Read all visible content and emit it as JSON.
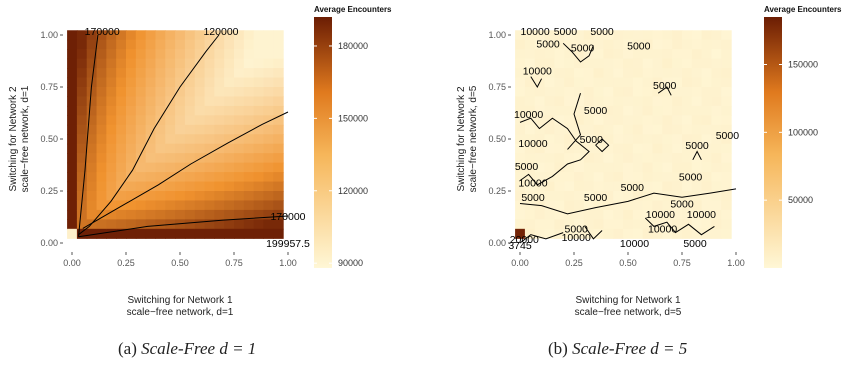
{
  "chart_data": [
    {
      "type": "heatmap",
      "panel": "a",
      "xlabel": "Switching for Network 1\nscale−free network, d=1",
      "ylabel": "Switching for Network 2\nscale−free network, d=1",
      "x_ticks": [
        "0.00",
        "0.25",
        "0.50",
        "0.75",
        "1.00"
      ],
      "y_ticks": [
        "0.00",
        "0.25",
        "0.50",
        "0.75",
        "1.00"
      ],
      "xlim": [
        0,
        1
      ],
      "ylim": [
        0,
        1
      ],
      "legend": {
        "title": "Average Encounters",
        "placement": "right",
        "ticks": [
          "90000",
          "120000",
          "150000",
          "180000"
        ],
        "tick_values": [
          90000,
          120000,
          150000,
          180000
        ],
        "range": [
          88000,
          192000
        ],
        "color_low": "#fff7d6",
        "color_mid": "#f0922e",
        "color_high": "#6b1d04"
      },
      "contour_labels": [
        {
          "text": "170000",
          "x": 0.14,
          "y": 1.02
        },
        {
          "text": "120000",
          "x": 0.69,
          "y": 1.02
        },
        {
          "text": "170000",
          "x": 1.0,
          "y": 0.13
        },
        {
          "text": "199957.5",
          "x": 1.0,
          "y": 0.0
        }
      ]
    },
    {
      "type": "heatmap",
      "panel": "b",
      "xlabel": "Switching for Network 1\nscale−free network, d=5",
      "ylabel": "Switching for Network 2\nscale−free network, d=5",
      "x_ticks": [
        "0.00",
        "0.25",
        "0.50",
        "0.75",
        "1.00"
      ],
      "y_ticks": [
        "0.00",
        "0.25",
        "0.50",
        "0.75",
        "1.00"
      ],
      "xlim": [
        0,
        1
      ],
      "ylim": [
        0,
        1
      ],
      "legend": {
        "title": "Average Encounters",
        "placement": "right",
        "ticks": [
          "50000",
          "100000",
          "150000"
        ],
        "tick_values": [
          50000,
          100000,
          150000
        ],
        "range": [
          0,
          185000
        ],
        "color_low": "#fff7d6",
        "color_mid": "#f0922e",
        "color_high": "#6b1d04"
      },
      "contour_labels": [
        {
          "text": "10000",
          "x": 0.07,
          "y": 1.02
        },
        {
          "text": "5000",
          "x": 0.21,
          "y": 1.02
        },
        {
          "text": "5000",
          "x": 0.38,
          "y": 1.02
        },
        {
          "text": "5000",
          "x": 0.13,
          "y": 0.96
        },
        {
          "text": "5000",
          "x": 0.29,
          "y": 0.94
        },
        {
          "text": "5000",
          "x": 0.55,
          "y": 0.95
        },
        {
          "text": "10000",
          "x": 0.08,
          "y": 0.83
        },
        {
          "text": "5000",
          "x": 0.67,
          "y": 0.76
        },
        {
          "text": "10000",
          "x": 0.04,
          "y": 0.62
        },
        {
          "text": "5000",
          "x": 0.35,
          "y": 0.64
        },
        {
          "text": "5000",
          "x": 0.96,
          "y": 0.52
        },
        {
          "text": "5000",
          "x": 0.33,
          "y": 0.5
        },
        {
          "text": "10000",
          "x": 0.06,
          "y": 0.48
        },
        {
          "text": "5000",
          "x": 0.82,
          "y": 0.47
        },
        {
          "text": "5000",
          "x": 0.03,
          "y": 0.37
        },
        {
          "text": "5000",
          "x": 0.79,
          "y": 0.32
        },
        {
          "text": "10000",
          "x": 0.06,
          "y": 0.29
        },
        {
          "text": "5000",
          "x": 0.52,
          "y": 0.27
        },
        {
          "text": "5000",
          "x": 0.06,
          "y": 0.22
        },
        {
          "text": "5000",
          "x": 0.35,
          "y": 0.22
        },
        {
          "text": "5000",
          "x": 0.75,
          "y": 0.19
        },
        {
          "text": "10000",
          "x": 0.65,
          "y": 0.14
        },
        {
          "text": "10000",
          "x": 0.84,
          "y": 0.14
        },
        {
          "text": "10000",
          "x": 0.66,
          "y": 0.07
        },
        {
          "text": "20000",
          "x": 0.02,
          "y": 0.02
        },
        {
          "text": "5000",
          "x": 0.26,
          "y": 0.07
        },
        {
          "text": "10000",
          "x": 0.26,
          "y": 0.03
        },
        {
          "text": "10000",
          "x": 0.53,
          "y": 0.0
        },
        {
          "text": "5000",
          "x": 0.81,
          "y": 0.0
        },
        {
          "text": "3745",
          "x": 0.0,
          "y": -0.01
        }
      ]
    }
  ],
  "captions": [
    {
      "label": "(a)",
      "title": "Scale-Free",
      "formula": "d = 1"
    },
    {
      "label": "(b)",
      "title": "Scale-Free",
      "formula": "d = 5"
    }
  ]
}
